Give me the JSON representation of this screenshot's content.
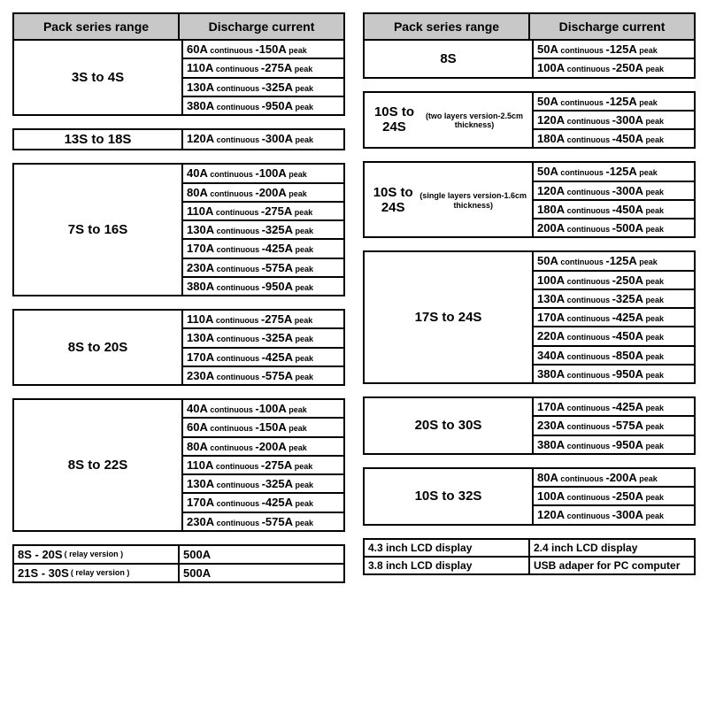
{
  "headers": {
    "series": "Pack series range",
    "discharge": "Discharge current"
  },
  "left": [
    {
      "series": "3S to 4S",
      "rates": [
        {
          "c": "60",
          "p": "150"
        },
        {
          "c": "110",
          "p": "275"
        },
        {
          "c": "130",
          "p": "325"
        },
        {
          "c": "380",
          "p": "950"
        }
      ]
    },
    {
      "series": "13S to 18S",
      "rates": [
        {
          "c": "120",
          "p": "300"
        }
      ],
      "nohead": true
    },
    {
      "series": "7S to 16S",
      "rates": [
        {
          "c": "40",
          "p": "100"
        },
        {
          "c": "80",
          "p": "200"
        },
        {
          "c": "110",
          "p": "275"
        },
        {
          "c": "130",
          "p": "325"
        },
        {
          "c": "170",
          "p": "425"
        },
        {
          "c": "230",
          "p": "575"
        },
        {
          "c": "380",
          "p": "950"
        }
      ]
    },
    {
      "series": "8S to 20S",
      "rates": [
        {
          "c": "110",
          "p": "275"
        },
        {
          "c": "130",
          "p": "325"
        },
        {
          "c": "170",
          "p": "425"
        },
        {
          "c": "230",
          "p": "575"
        }
      ]
    },
    {
      "series": "8S to 22S",
      "rates": [
        {
          "c": "40",
          "p": "100"
        },
        {
          "c": "60",
          "p": "150"
        },
        {
          "c": "80",
          "p": "200"
        },
        {
          "c": "110",
          "p": "275"
        },
        {
          "c": "130",
          "p": "325"
        },
        {
          "c": "170",
          "p": "425"
        },
        {
          "c": "230",
          "p": "575"
        }
      ]
    }
  ],
  "left_bottom": [
    {
      "label": "8S - 20S",
      "sub": "( relay version )",
      "val": "500A"
    },
    {
      "label": "21S - 30S",
      "sub": "( relay version )",
      "val": "500A"
    }
  ],
  "right": [
    {
      "series": "8S",
      "rates": [
        {
          "c": "50",
          "p": "125"
        },
        {
          "c": "100",
          "p": "250"
        }
      ]
    },
    {
      "series": "10S to 24S",
      "sub": "(two layers version-2.5cm thickness)",
      "rates": [
        {
          "c": "50",
          "p": "125"
        },
        {
          "c": "120",
          "p": "300"
        },
        {
          "c": "180",
          "p": "450"
        }
      ]
    },
    {
      "series": "10S to 24S",
      "sub": "(single layers version-1.6cm thickness)",
      "rates": [
        {
          "c": "50",
          "p": "125"
        },
        {
          "c": "120",
          "p": "300"
        },
        {
          "c": "180",
          "p": "450"
        },
        {
          "c": "200",
          "p": "500"
        }
      ]
    },
    {
      "series": "17S to 24S",
      "rates": [
        {
          "c": "50",
          "p": "125"
        },
        {
          "c": "100",
          "p": "250"
        },
        {
          "c": "130",
          "p": "325"
        },
        {
          "c": "170",
          "p": "425"
        },
        {
          "c": "220",
          "p": "450"
        },
        {
          "c": "340",
          "p": "850"
        },
        {
          "c": "380",
          "p": "950"
        }
      ]
    },
    {
      "series": "20S to 30S",
      "rates": [
        {
          "c": "170",
          "p": "425"
        },
        {
          "c": "230",
          "p": "575"
        },
        {
          "c": "380",
          "p": "950"
        }
      ]
    },
    {
      "series": "10S to 32S",
      "rates": [
        {
          "c": "80",
          "p": "200"
        },
        {
          "c": "100",
          "p": "250"
        },
        {
          "c": "120",
          "p": "300"
        }
      ]
    }
  ],
  "right_bottom": [
    [
      "4.3 inch LCD display",
      "2.4 inch LCD display"
    ],
    [
      "3.8 inch LCD display",
      "USB adaper for PC computer"
    ]
  ]
}
